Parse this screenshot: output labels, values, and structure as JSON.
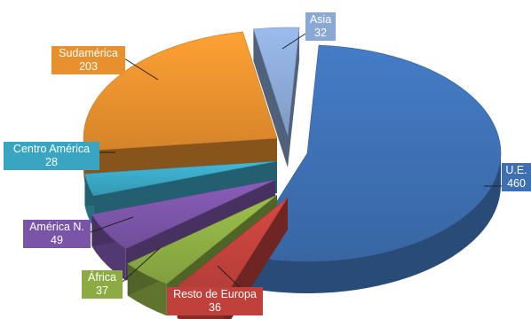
{
  "chart_data": {
    "type": "pie",
    "style": "3d-exploded",
    "title": "",
    "slices": [
      {
        "label": "U.E.",
        "value": 460,
        "color": "#3d6fb1"
      },
      {
        "label": "Resto de Europa",
        "value": 36,
        "color": "#c0413c"
      },
      {
        "label": "África",
        "value": 37,
        "color": "#8cac43"
      },
      {
        "label": "América N.",
        "value": 49,
        "color": "#7a54a6"
      },
      {
        "label": "Centro América",
        "value": 28,
        "color": "#3aa5c2"
      },
      {
        "label": "Sudamérica",
        "value": 203,
        "color": "#e8902e"
      },
      {
        "label": "Asia",
        "value": 32,
        "color": "#8aa8d4"
      }
    ]
  }
}
